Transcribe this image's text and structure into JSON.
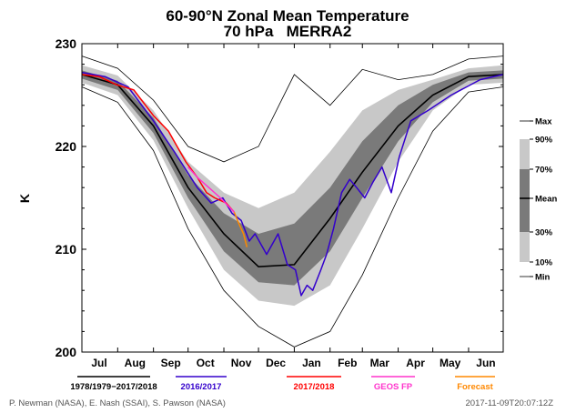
{
  "chart_data": {
    "type": "line",
    "title": "60-90°N Zonal Mean Temperature",
    "subtitle": "70 hPa   MERRA2",
    "ylabel": "K",
    "ylim": [
      200,
      230
    ],
    "y_ticks": [
      200,
      210,
      220,
      230
    ],
    "x_domain_days": [
      0,
      365
    ],
    "months": [
      {
        "label": "Jul",
        "day": 15
      },
      {
        "label": "Aug",
        "day": 46
      },
      {
        "label": "Sep",
        "day": 77
      },
      {
        "label": "Oct",
        "day": 107
      },
      {
        "label": "Nov",
        "day": 138
      },
      {
        "label": "Dec",
        "day": 168
      },
      {
        "label": "Jan",
        "day": 199
      },
      {
        "label": "Feb",
        "day": 230
      },
      {
        "label": "Mar",
        "day": 258
      },
      {
        "label": "Apr",
        "day": 289
      },
      {
        "label": "May",
        "day": 319
      },
      {
        "label": "Jun",
        "day": 350
      }
    ],
    "band_legend": {
      "labels": [
        "Max",
        "90%",
        "70%",
        "Mean",
        "30%",
        "10%",
        "Min"
      ],
      "colors": {
        "outer": "#c8c8c8",
        "inner": "#7a7a7a",
        "mean": "#000000"
      }
    },
    "climatology": {
      "name": "1978/1979–2017/2018",
      "days": [
        0,
        31,
        62,
        92,
        123,
        153,
        184,
        215,
        243,
        274,
        304,
        335,
        365
      ],
      "max": [
        228.8,
        227.6,
        224.5,
        220.0,
        218.5,
        220.0,
        227.0,
        224.0,
        227.5,
        226.5,
        227.0,
        228.5,
        228.8
      ],
      "p90": [
        227.9,
        226.9,
        223.5,
        218.5,
        215.5,
        214.0,
        215.5,
        219.5,
        223.5,
        225.5,
        226.5,
        227.6,
        227.9
      ],
      "p70": [
        227.4,
        226.4,
        222.8,
        217.2,
        213.5,
        211.5,
        212.5,
        216.0,
        220.5,
        224.0,
        226.0,
        227.2,
        227.4
      ],
      "mean": [
        227.0,
        226.0,
        222.0,
        216.0,
        211.5,
        208.3,
        208.5,
        213.0,
        217.5,
        222.0,
        225.0,
        226.8,
        227.0
      ],
      "p30": [
        226.6,
        225.5,
        221.3,
        215.0,
        209.8,
        206.8,
        206.5,
        209.8,
        215.0,
        220.5,
        224.3,
        226.4,
        226.6
      ],
      "p10": [
        226.2,
        225.0,
        220.6,
        214.0,
        208.0,
        205.0,
        204.5,
        206.5,
        212.0,
        218.5,
        223.5,
        226.0,
        226.2
      ],
      "min": [
        225.8,
        224.3,
        219.6,
        212.0,
        206.0,
        202.5,
        200.5,
        202.0,
        207.5,
        215.0,
        221.5,
        225.3,
        225.8
      ]
    },
    "series": [
      {
        "name": "2016/2017",
        "color": "#3300cc",
        "x": [
          0,
          20,
          40,
          62,
          80,
          100,
          112,
          122,
          130,
          138,
          145,
          150,
          160,
          170,
          178,
          185,
          190,
          195,
          200,
          207,
          212,
          218,
          225,
          232,
          238,
          245,
          252,
          260,
          268,
          275,
          285,
          300,
          320,
          345,
          365
        ],
        "y": [
          227.2,
          226.8,
          225.8,
          222.5,
          219.5,
          216.0,
          214.5,
          215.0,
          213.5,
          212.8,
          210.8,
          211.5,
          209.5,
          211.5,
          208.5,
          208.0,
          205.5,
          206.5,
          206.0,
          208.0,
          209.5,
          212.0,
          215.5,
          216.8,
          216.0,
          215.0,
          216.5,
          218.0,
          215.5,
          219.0,
          222.5,
          223.5,
          225.0,
          226.5,
          227.0
        ]
      },
      {
        "name": "2017/2018",
        "color": "#ff0000",
        "x": [
          0,
          15,
          30,
          45,
          62,
          75,
          90,
          100,
          108,
          115,
          125,
          132
        ],
        "y": [
          227.0,
          226.8,
          226.0,
          225.5,
          223.0,
          221.5,
          218.5,
          217.0,
          215.5,
          215.0,
          214.5,
          213.6
        ]
      },
      {
        "name": "GEOS FP",
        "color": "#ff33cc",
        "x": [
          92,
          100,
          110,
          120,
          132
        ],
        "y": [
          218.0,
          217.0,
          216.0,
          215.0,
          213.6
        ]
      },
      {
        "name": "Forecast",
        "color": "#ff8800",
        "x": [
          132,
          136,
          140,
          143
        ],
        "y": [
          213.6,
          212.5,
          211.5,
          210.2
        ]
      }
    ],
    "legend_items": [
      {
        "label": "1978/1979−2017/2018",
        "color": "#000000"
      },
      {
        "label": "2016/2017",
        "color": "#3300cc"
      },
      {
        "label": "2017/2018",
        "color": "#ff0000"
      },
      {
        "label": "GEOS FP",
        "color": "#ff33cc"
      },
      {
        "label": "Forecast",
        "color": "#ff8800"
      }
    ],
    "credit": "P. Newman (NASA), E. Nash (SSAI), S. Pawson (NASA)",
    "timestamp": "2017-11-09T20:07:12Z"
  }
}
